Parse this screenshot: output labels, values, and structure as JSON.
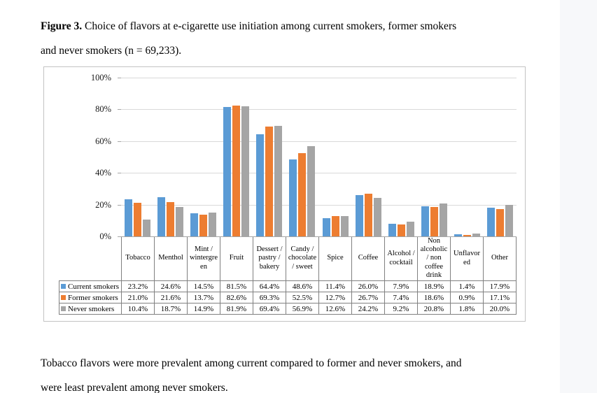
{
  "page": {
    "background": "#ffffff",
    "right_strip_color": "#f7f8fa"
  },
  "caption": {
    "label": "Figure 3.",
    "line1": "Choice of flavors at e-cigarette use initiation among current smokers, former smokers",
    "line2": "and never smokers (n = 69,233)."
  },
  "footnote": {
    "line1": "Tobacco flavors were more prevalent among current compared to former and never smokers, and",
    "line2": "were least prevalent among never smokers."
  },
  "chart_data": {
    "type": "bar",
    "title": "",
    "xlabel": "",
    "ylabel": "",
    "ylim": [
      0,
      100
    ],
    "y_ticks": [
      "100%",
      "80%",
      "60%",
      "40%",
      "20%",
      "0%"
    ],
    "grid": true,
    "legend_position": "data-table-left",
    "value_suffix": "%",
    "categories": [
      "Tobacco",
      "Menthol",
      "Mint / wintergreen",
      "Fruit",
      "Dessert / pastry / bakery",
      "Candy / chocolate / sweet",
      "Spice",
      "Coffee",
      "Alcohol / cocktail",
      "Non alcoholic / non coffee drink",
      "Unflavored",
      "Other"
    ],
    "series": [
      {
        "name": "Current smokers",
        "color": "#5B9BD5",
        "values": [
          23.2,
          24.6,
          14.5,
          81.5,
          64.4,
          48.6,
          11.4,
          26.0,
          7.9,
          18.9,
          1.4,
          17.9
        ]
      },
      {
        "name": "Former smokers",
        "color": "#ED7D31",
        "values": [
          21.0,
          21.6,
          13.7,
          82.6,
          69.3,
          52.5,
          12.7,
          26.7,
          7.4,
          18.6,
          0.9,
          17.1
        ]
      },
      {
        "name": "Never smokers",
        "color": "#A5A5A5",
        "values": [
          10.4,
          18.7,
          14.9,
          81.9,
          69.4,
          56.9,
          12.6,
          24.2,
          9.2,
          20.8,
          1.8,
          20.0
        ]
      }
    ]
  }
}
